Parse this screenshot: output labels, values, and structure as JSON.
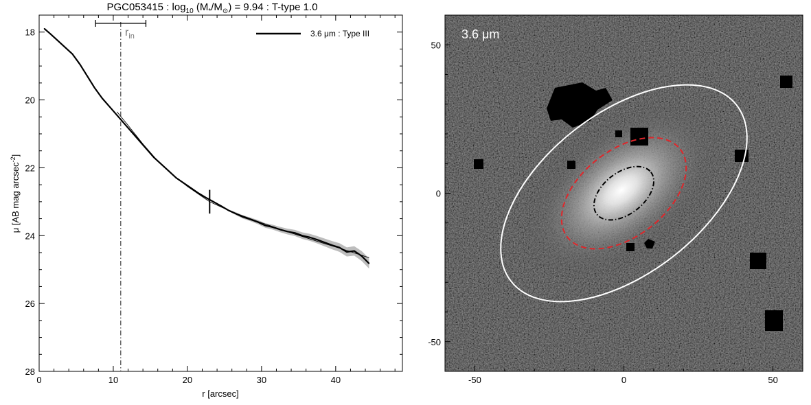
{
  "chart_data": [
    {
      "type": "line",
      "title_parts": [
        "PGC053415 : log",
        "10",
        " (M",
        "*",
        "/M",
        "⊙",
        ") = 9.94 : T-type 1.0"
      ],
      "xlabel": "r [arcsec]",
      "ylabel_main": "μ [AB mag arcsec",
      "ylabel_sup": "-2",
      "ylabel_end": "]",
      "xlim": [
        0,
        49
      ],
      "ylim": [
        28,
        17.5
      ],
      "y_inverted": true,
      "xticks": [
        0,
        10,
        20,
        30,
        40
      ],
      "yticks": [
        18,
        20,
        22,
        24,
        26,
        28
      ],
      "legend": {
        "label": "3.6 μm : Type III",
        "placement": "top-right"
      },
      "rin": {
        "label": "r",
        "label_sub": "in",
        "value": 11.0,
        "err_low": 7.6,
        "err_high": 14.4
      },
      "break_radius": 23.0,
      "series": [
        {
          "name": "3.6 μm : Type III",
          "x": [
            0.7,
            1.5,
            2.5,
            3.5,
            4.5,
            5.5,
            6.5,
            7.5,
            8.5,
            9.5,
            10.5,
            11.5,
            12.5,
            13.5,
            14.5,
            15.5,
            16.5,
            17.5,
            18.5,
            19.5,
            20.5,
            21.5,
            22.5,
            23.5,
            24.5,
            25.5,
            26.5,
            27.5,
            28.5,
            29.5,
            30.5,
            31.5,
            32.5,
            33.5,
            34.5,
            35.5,
            36.5,
            37.5,
            38.5,
            39.5,
            40.5,
            41.5,
            42.5,
            43.5,
            44.5
          ],
          "values": [
            17.9,
            18.05,
            18.25,
            18.45,
            18.65,
            18.95,
            19.3,
            19.65,
            19.95,
            20.2,
            20.45,
            20.7,
            20.95,
            21.2,
            21.45,
            21.7,
            21.9,
            22.1,
            22.3,
            22.45,
            22.6,
            22.75,
            22.88,
            23.0,
            23.12,
            23.25,
            23.35,
            23.45,
            23.52,
            23.6,
            23.7,
            23.75,
            23.82,
            23.88,
            23.92,
            24.0,
            24.05,
            24.12,
            24.2,
            24.28,
            24.35,
            24.48,
            24.45,
            24.6,
            24.82
          ]
        },
        {
          "name": "",
          "x": [
            10.5,
            12,
            14,
            16,
            18,
            20,
            22,
            23
          ],
          "values": [
            20.35,
            20.75,
            21.3,
            21.8,
            22.2,
            22.55,
            22.85,
            23.0
          ]
        },
        {
          "name": "",
          "x": [
            23,
            26,
            30,
            34,
            38,
            42,
            44.5
          ],
          "values": [
            23.0,
            23.3,
            23.62,
            23.92,
            24.2,
            24.47,
            24.65
          ]
        }
      ]
    },
    {
      "type": "heatmap",
      "band_label": "3.6 μm",
      "xlim": [
        -60,
        60
      ],
      "ylim": [
        -60,
        60
      ],
      "xticks": [
        -50,
        0,
        50
      ],
      "yticks": [
        50,
        0,
        -50
      ],
      "ellipses": [
        {
          "name": "outer",
          "color": "#ffffff",
          "style": "solid",
          "center": [
            0,
            0
          ],
          "semi_major": 48,
          "semi_minor": 27,
          "pa_deg": -38
        },
        {
          "name": "break",
          "color": "#e0262a",
          "style": "dashed",
          "center": [
            0,
            0
          ],
          "semi_major": 24,
          "semi_minor": 14.5,
          "pa_deg": -38
        },
        {
          "name": "rin",
          "color": "#000000",
          "style": "dashdot",
          "center": [
            0,
            0
          ],
          "semi_major": 11.5,
          "semi_minor": 7,
          "pa_deg": -38
        }
      ]
    }
  ]
}
